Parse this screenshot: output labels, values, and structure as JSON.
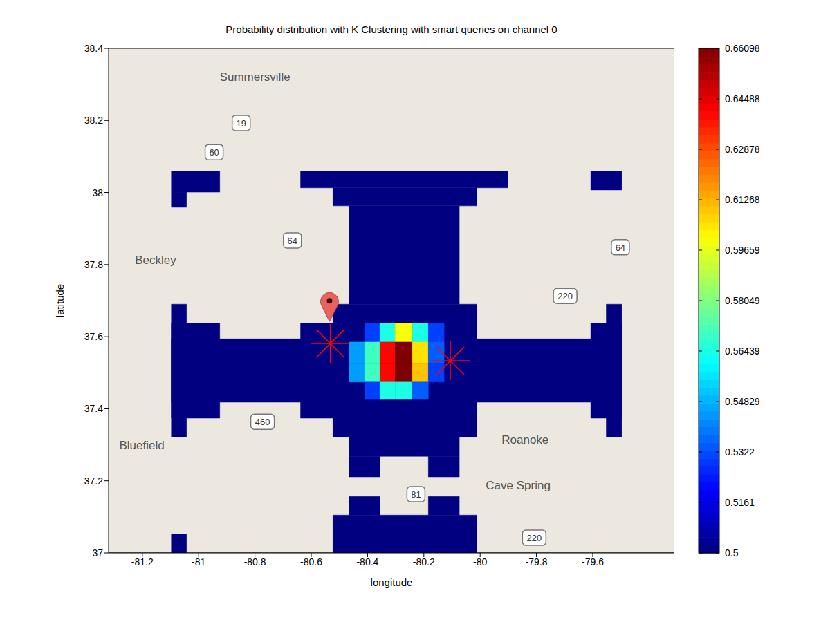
{
  "chart_data": {
    "type": "heatmap",
    "title": "Probability distribution with K Clustering with smart queries on channel 0",
    "x_label": "longitude",
    "y_label": "latitude",
    "xlim": [
      -81.32,
      -79.31
    ],
    "xticks": [
      -81.2,
      -81,
      -80.8,
      -80.6,
      -80.4,
      -80.2,
      -80,
      -79.8,
      -79.6
    ],
    "ylim": [
      37,
      38.4
    ],
    "yticks": [
      37,
      37.2,
      37.4,
      37.6,
      37.8,
      38,
      38.2,
      38.4
    ],
    "colorbar": {
      "range": [
        0.5,
        0.66098
      ],
      "ticks": [
        0.5,
        0.5161,
        0.5322,
        0.54829,
        0.56439,
        0.58049,
        0.59659,
        0.61268,
        0.62878,
        0.64488,
        0.66098
      ]
    },
    "cells": [
      {
        "x": [
          -81.097,
          -80.925
        ],
        "y": [
          38.001,
          38.059
        ],
        "value": 0.5
      },
      {
        "x": [
          -81.097,
          -81.043
        ],
        "y": [
          37.959,
          38.001
        ],
        "value": 0.5
      },
      {
        "x": [
          -80.638,
          -79.902
        ],
        "y": [
          38.013,
          38.059
        ],
        "value": 0.5
      },
      {
        "x": [
          -80.523,
          -80.012
        ],
        "y": [
          37.963,
          38.013
        ],
        "value": 0.5
      },
      {
        "x": [
          -80.466,
          -80.074
        ],
        "y": [
          37.69,
          37.963
        ],
        "value": 0.5
      },
      {
        "x": [
          -79.607,
          -79.497
        ],
        "y": [
          38.007,
          38.059
        ],
        "value": 0.5
      },
      {
        "x": [
          -81.097,
          -81.043
        ],
        "y": [
          37.322,
          37.69
        ],
        "value": 0.5
      },
      {
        "x": [
          -81.097,
          -80.925
        ],
        "y": [
          37.374,
          37.637
        ],
        "value": 0.5
      },
      {
        "x": [
          -81.097,
          -79.497
        ],
        "y": [
          37.418,
          37.594
        ],
        "value": 0.5
      },
      {
        "x": [
          -80.638,
          -80.012
        ],
        "y": [
          37.374,
          37.637
        ],
        "value": 0.5
      },
      {
        "x": [
          -80.523,
          -80.012
        ],
        "y": [
          37.637,
          37.69
        ],
        "value": 0.5
      },
      {
        "x": [
          -79.607,
          -79.497
        ],
        "y": [
          37.374,
          37.637
        ],
        "value": 0.5
      },
      {
        "x": [
          -79.552,
          -79.497
        ],
        "y": [
          37.322,
          37.69
        ],
        "value": 0.5
      },
      {
        "x": [
          -80.523,
          -80.012
        ],
        "y": [
          37.322,
          37.374
        ],
        "value": 0.5
      },
      {
        "x": [
          -80.466,
          -80.074
        ],
        "y": [
          37.268,
          37.322
        ],
        "value": 0.5
      },
      {
        "x": [
          -80.466,
          -80.356
        ],
        "y": [
          37.211,
          37.268
        ],
        "value": 0.5
      },
      {
        "x": [
          -80.184,
          -80.074
        ],
        "y": [
          37.211,
          37.268
        ],
        "value": 0.5
      },
      {
        "x": [
          -80.466,
          -80.356
        ],
        "y": [
          37.105,
          37.157
        ],
        "value": 0.5
      },
      {
        "x": [
          -80.184,
          -80.074
        ],
        "y": [
          37.105,
          37.157
        ],
        "value": 0.5
      },
      {
        "x": [
          -80.523,
          -80.012
        ],
        "y": [
          37,
          37.105
        ],
        "value": 0.5
      },
      {
        "x": [
          -81.097,
          -81.043
        ],
        "y": [
          37,
          37.052
        ],
        "value": 0.5
      },
      {
        "x": [
          -80.41,
          -80.356
        ],
        "y": [
          37.585,
          37.637
        ],
        "value": 0.53
      },
      {
        "x": [
          -80.356,
          -80.302
        ],
        "y": [
          37.585,
          37.637
        ],
        "value": 0.565
      },
      {
        "x": [
          -80.302,
          -80.241
        ],
        "y": [
          37.585,
          37.637
        ],
        "value": 0.6
      },
      {
        "x": [
          -80.241,
          -80.184
        ],
        "y": [
          37.585,
          37.637
        ],
        "value": 0.565
      },
      {
        "x": [
          -80.184,
          -80.128
        ],
        "y": [
          37.585,
          37.637
        ],
        "value": 0.53
      },
      {
        "x": [
          -80.466,
          -80.41
        ],
        "y": [
          37.527,
          37.585
        ],
        "value": 0.545
      },
      {
        "x": [
          -80.41,
          -80.356
        ],
        "y": [
          37.527,
          37.585
        ],
        "value": 0.57
      },
      {
        "x": [
          -80.356,
          -80.302
        ],
        "y": [
          37.527,
          37.585
        ],
        "value": 0.64
      },
      {
        "x": [
          -80.302,
          -80.241
        ],
        "y": [
          37.527,
          37.585
        ],
        "value": 0.661
      },
      {
        "x": [
          -80.241,
          -80.184
        ],
        "y": [
          37.527,
          37.585
        ],
        "value": 0.605
      },
      {
        "x": [
          -80.184,
          -80.128
        ],
        "y": [
          37.527,
          37.585
        ],
        "value": 0.535
      },
      {
        "x": [
          -80.466,
          -80.41
        ],
        "y": [
          37.474,
          37.527
        ],
        "value": 0.545
      },
      {
        "x": [
          -80.41,
          -80.356
        ],
        "y": [
          37.474,
          37.527
        ],
        "value": 0.57
      },
      {
        "x": [
          -80.356,
          -80.302
        ],
        "y": [
          37.474,
          37.527
        ],
        "value": 0.64
      },
      {
        "x": [
          -80.302,
          -80.241
        ],
        "y": [
          37.474,
          37.527
        ],
        "value": 0.661
      },
      {
        "x": [
          -80.241,
          -80.184
        ],
        "y": [
          37.474,
          37.527
        ],
        "value": 0.61
      },
      {
        "x": [
          -80.184,
          -80.128
        ],
        "y": [
          37.474,
          37.527
        ],
        "value": 0.53
      },
      {
        "x": [
          -80.41,
          -80.356
        ],
        "y": [
          37.426,
          37.474
        ],
        "value": 0.53
      },
      {
        "x": [
          -80.356,
          -80.302
        ],
        "y": [
          37.426,
          37.474
        ],
        "value": 0.565
      },
      {
        "x": [
          -80.302,
          -80.241
        ],
        "y": [
          37.426,
          37.474
        ],
        "value": 0.565
      },
      {
        "x": [
          -80.241,
          -80.184
        ],
        "y": [
          37.426,
          37.474
        ],
        "value": 0.535
      }
    ],
    "markers": {
      "x": [
        -80.532,
        -80.106
      ],
      "y": [
        37.581,
        37.533
      ],
      "color": "#ff0000",
      "marker": "asterisk"
    },
    "pin": {
      "x": -80.535,
      "y": 37.642,
      "color": "#e8635d",
      "marker": "pin"
    },
    "annotations": [
      {
        "text": "Summersville",
        "x": -80.8,
        "y": 38.32
      },
      {
        "text": "Beckley",
        "x": -81.153,
        "y": 37.811
      },
      {
        "text": "Bluefield",
        "x": -81.202,
        "y": 37.297
      },
      {
        "text": "Roanoke",
        "x": -79.84,
        "y": 37.313
      },
      {
        "text": "Cave Spring",
        "x": -79.865,
        "y": 37.186
      },
      {
        "text": "19",
        "x": -80.849,
        "y": 38.193
      },
      {
        "text": "60",
        "x": -80.945,
        "y": 38.112
      },
      {
        "text": "64",
        "x": -80.667,
        "y": 37.867
      },
      {
        "text": "64",
        "x": -79.502,
        "y": 37.848
      },
      {
        "text": "220",
        "x": -79.698,
        "y": 37.713
      },
      {
        "text": "220",
        "x": -79.808,
        "y": 37.042
      },
      {
        "text": "460",
        "x": -80.773,
        "y": 37.364
      },
      {
        "text": "81",
        "x": -80.228,
        "y": 37.163
      }
    ]
  }
}
